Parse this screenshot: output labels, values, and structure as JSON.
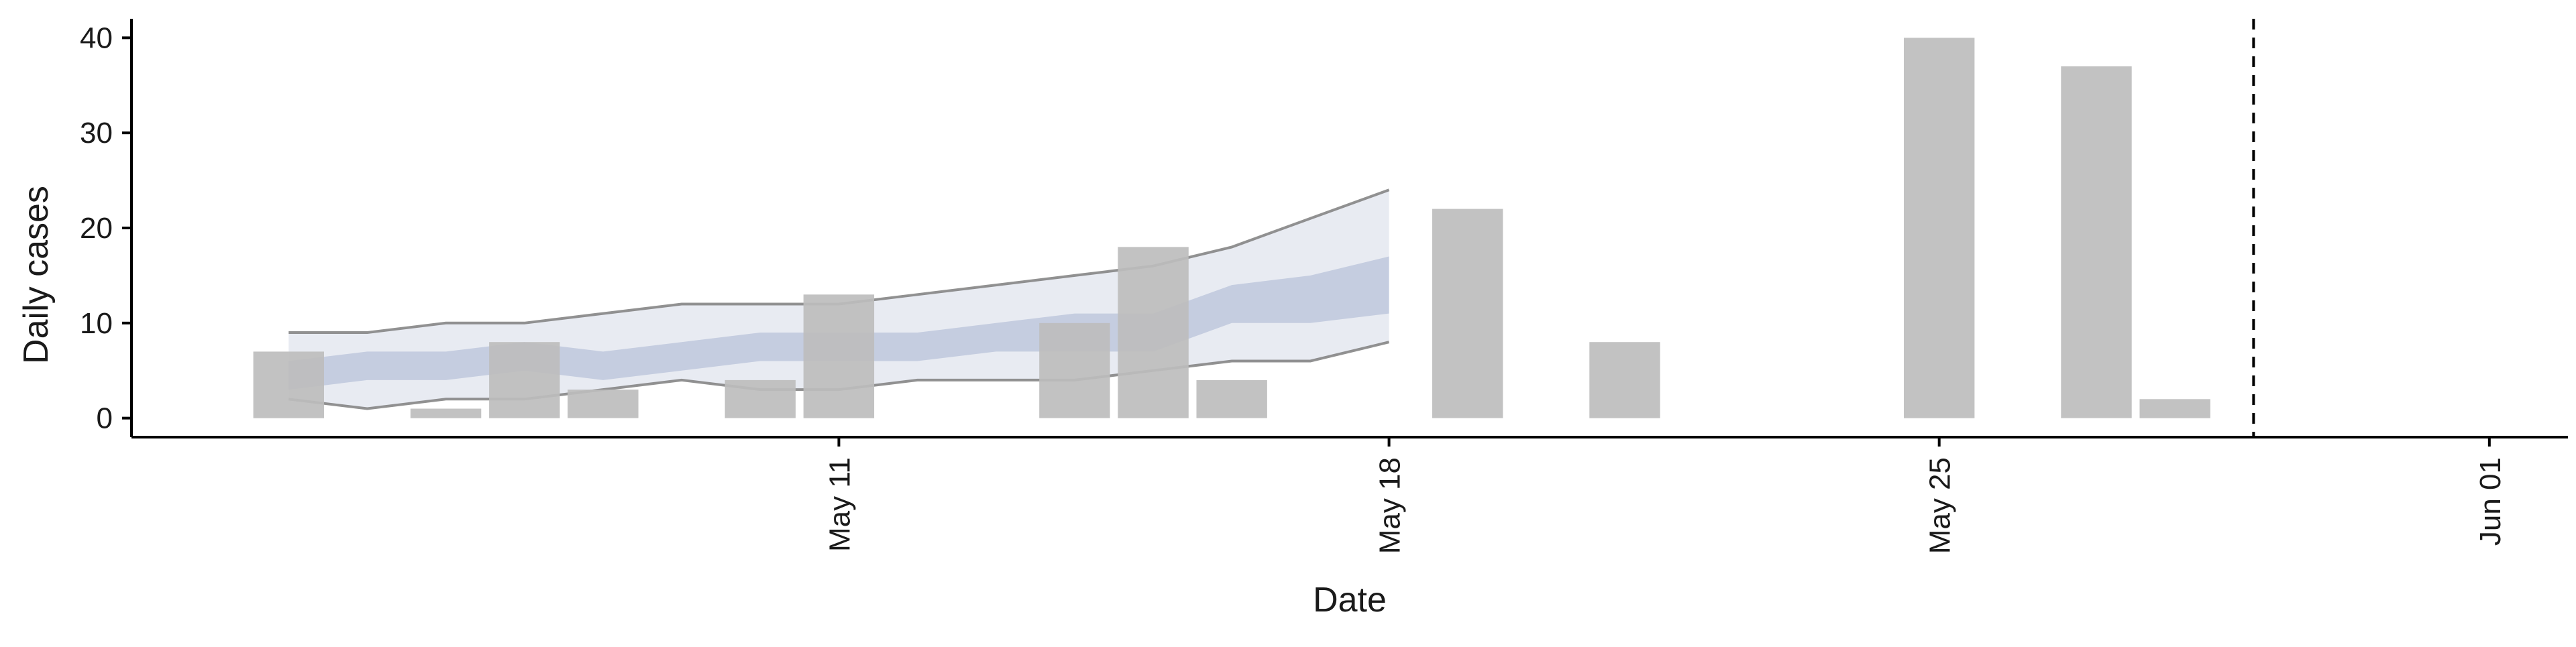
{
  "chart_data": {
    "type": "bar",
    "title": "",
    "xlabel": "Date",
    "ylabel": "Daily cases",
    "ylim": [
      -2,
      42
    ],
    "xlim": [
      "2020-05-02",
      "2020-06-02"
    ],
    "yticks": [
      0,
      10,
      20,
      30,
      40
    ],
    "xticks": [
      {
        "date": "2020-05-11",
        "label": "May 11"
      },
      {
        "date": "2020-05-18",
        "label": "May 18"
      },
      {
        "date": "2020-05-25",
        "label": "May 25"
      },
      {
        "date": "2020-06-01",
        "label": "Jun 01"
      }
    ],
    "grid": false,
    "legend": "none",
    "bars": {
      "name": "Daily cases",
      "color": "#bdbdbd",
      "points": [
        {
          "date": "2020-05-04",
          "value": 7
        },
        {
          "date": "2020-05-06",
          "value": 1
        },
        {
          "date": "2020-05-07",
          "value": 8
        },
        {
          "date": "2020-05-08",
          "value": 3
        },
        {
          "date": "2020-05-10",
          "value": 4
        },
        {
          "date": "2020-05-11",
          "value": 13
        },
        {
          "date": "2020-05-14",
          "value": 10
        },
        {
          "date": "2020-05-15",
          "value": 18
        },
        {
          "date": "2020-05-16",
          "value": 4
        },
        {
          "date": "2020-05-19",
          "value": 22
        },
        {
          "date": "2020-05-21",
          "value": 8
        },
        {
          "date": "2020-05-25",
          "value": 40
        },
        {
          "date": "2020-05-27",
          "value": 37
        },
        {
          "date": "2020-05-28",
          "value": 2
        }
      ]
    },
    "forecast_band": {
      "outer_color": "#e8ebf2",
      "inner_color": "#c5cde0",
      "outer_edge_color": "#7f7f7f",
      "points": [
        {
          "date": "2020-05-04",
          "lower90": 2,
          "lower50": 3,
          "upper50": 6,
          "upper90": 9
        },
        {
          "date": "2020-05-05",
          "lower90": 1,
          "lower50": 4,
          "upper50": 7,
          "upper90": 9
        },
        {
          "date": "2020-05-06",
          "lower90": 2,
          "lower50": 4,
          "upper50": 7,
          "upper90": 10
        },
        {
          "date": "2020-05-07",
          "lower90": 2,
          "lower50": 5,
          "upper50": 8,
          "upper90": 10
        },
        {
          "date": "2020-05-08",
          "lower90": 3,
          "lower50": 4,
          "upper50": 7,
          "upper90": 11
        },
        {
          "date": "2020-05-09",
          "lower90": 4,
          "lower50": 5,
          "upper50": 8,
          "upper90": 12
        },
        {
          "date": "2020-05-10",
          "lower90": 3,
          "lower50": 6,
          "upper50": 9,
          "upper90": 12
        },
        {
          "date": "2020-05-11",
          "lower90": 3,
          "lower50": 6,
          "upper50": 9,
          "upper90": 12
        },
        {
          "date": "2020-05-12",
          "lower90": 4,
          "lower50": 6,
          "upper50": 9,
          "upper90": 13
        },
        {
          "date": "2020-05-13",
          "lower90": 4,
          "lower50": 7,
          "upper50": 10,
          "upper90": 14
        },
        {
          "date": "2020-05-14",
          "lower90": 4,
          "lower50": 7,
          "upper50": 11,
          "upper90": 15
        },
        {
          "date": "2020-05-15",
          "lower90": 5,
          "lower50": 7,
          "upper50": 11,
          "upper90": 16
        },
        {
          "date": "2020-05-16",
          "lower90": 6,
          "lower50": 10,
          "upper50": 14,
          "upper90": 18
        },
        {
          "date": "2020-05-17",
          "lower90": 6,
          "lower50": 10,
          "upper50": 15,
          "upper90": 21
        },
        {
          "date": "2020-05-18",
          "lower90": 8,
          "lower50": 11,
          "upper50": 17,
          "upper90": 24
        }
      ]
    },
    "reference_line": {
      "date": "2020-05-29",
      "style": "dashed",
      "color": "#000000"
    }
  }
}
